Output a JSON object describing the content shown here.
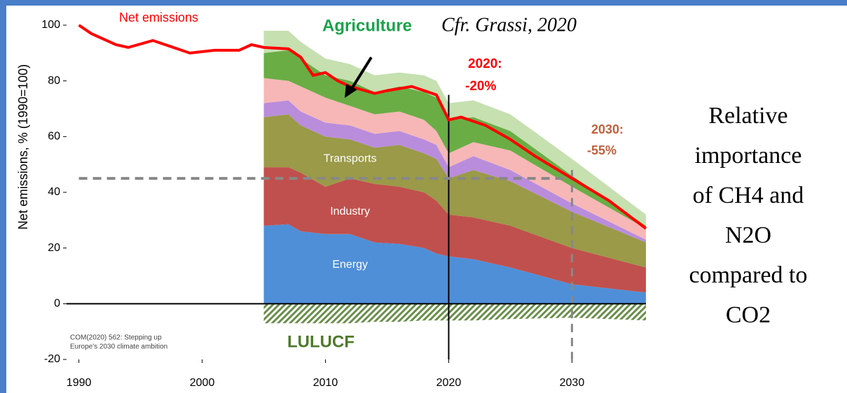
{
  "chart_data": {
    "type": "stacked_area",
    "ylabel": "Net emissions, % (1990=100)",
    "xlim": [
      1989,
      2036
    ],
    "ylim": [
      -20,
      100
    ],
    "xticks": [
      1990,
      2000,
      2010,
      2020,
      2030
    ],
    "yticks": [
      -20,
      0,
      20,
      40,
      60,
      80,
      100
    ],
    "x": [
      2005,
      2007,
      2008,
      2010,
      2012,
      2014,
      2016,
      2018,
      2019,
      2020,
      2022,
      2025,
      2030,
      2036
    ],
    "series": [
      {
        "name": "Energy",
        "color": "#4f8fd8",
        "values": [
          28,
          28.5,
          26,
          25,
          25,
          22,
          21.5,
          20,
          18,
          17,
          16,
          13,
          7,
          4
        ]
      },
      {
        "name": "Industry",
        "color": "#c0504d",
        "values": [
          21,
          20.5,
          21,
          17,
          20,
          21,
          20.5,
          20,
          19,
          15,
          15,
          15,
          13,
          9
        ]
      },
      {
        "name": "Transports",
        "color": "#9a9a48",
        "values": [
          18,
          19,
          17,
          18,
          14,
          13,
          15,
          14,
          15,
          13,
          17,
          16,
          13,
          9
        ]
      },
      {
        "color": "#b98ddc",
        "values": [
          5,
          5,
          5,
          5,
          5,
          5,
          5,
          5,
          5,
          4,
          5,
          4,
          3,
          1
        ]
      },
      {
        "color": "#f7b7b7",
        "values": [
          9,
          7,
          9,
          9,
          7,
          7,
          7,
          7,
          5,
          5,
          5,
          7,
          6,
          4
        ]
      },
      {
        "name": "Agriculture",
        "color": "#6aad45",
        "values": [
          9,
          11,
          10,
          8,
          9,
          8,
          9,
          10,
          12,
          12,
          9,
          7,
          4,
          1
        ]
      },
      {
        "color": "#c6e0b0",
        "values": [
          8,
          7,
          6,
          6,
          6,
          6,
          5,
          6,
          6,
          6,
          6,
          6,
          6,
          4
        ]
      }
    ],
    "lulucf": {
      "name": "LULUCF",
      "color": "#4e7a2a",
      "values": [
        -7,
        -7,
        -7,
        -7,
        -7,
        -6.5,
        -6.5,
        -6,
        -6,
        -6,
        -6,
        -5.5,
        -5,
        -6
      ]
    },
    "net_emissions": {
      "name": "Net emissions",
      "color": "#ff0000",
      "x": [
        1990,
        1991,
        1993,
        1994,
        1996,
        1997,
        1999,
        2001,
        2003,
        2004,
        2005,
        2007,
        2008,
        2009,
        2010,
        2011,
        2012,
        2014,
        2015,
        2017,
        2019,
        2020,
        2021,
        2023,
        2025,
        2027,
        2030,
        2033,
        2036
      ],
      "values": [
        100,
        97,
        93,
        92,
        94.5,
        93,
        90,
        91,
        91,
        93,
        92,
        91.5,
        88.5,
        82,
        83,
        80,
        78,
        75.5,
        76.5,
        78,
        75,
        66,
        67,
        64,
        59,
        53,
        45,
        37,
        27
      ]
    },
    "hlines": [
      45
    ],
    "vlines": [
      2020,
      2030
    ],
    "annotations": {
      "citation": "Cfr. Grassi, 2020",
      "t2020": "2020:",
      "v2020": "-20%",
      "t2030": "2030:",
      "v2030": "-55%",
      "source": [
        "COM(2020) 562: Stepping up",
        "Europe's 2030 climate ambition"
      ]
    },
    "side_text": [
      "Relative",
      "importance",
      "of CH4 and",
      "N2O",
      "compared to",
      "CO2"
    ]
  }
}
